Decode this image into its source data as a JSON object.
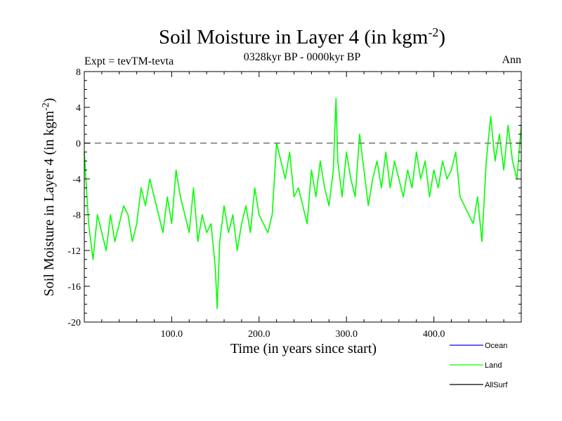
{
  "chart_data": {
    "type": "line",
    "title": "Soil Moisture in Layer 4 (in kgm",
    "title_sup": "-2",
    "title_close": ")",
    "subtitle_left": "Expt = tevTM-tevta",
    "subtitle_center": "0328kyr BP - 0000kyr BP",
    "subtitle_right": "Ann",
    "xlabel": "Time (in years since start)",
    "ylabel": "Soil Moisture in Layer 4 (in kgm",
    "ylabel_sup": "-2",
    "ylabel_close": ")",
    "xlim": [
      0,
      500
    ],
    "ylim": [
      -20,
      8
    ],
    "x_ticks": [
      100,
      200,
      300,
      400
    ],
    "x_tick_labels": [
      "100.0",
      "200.0",
      "300.0",
      "400.0"
    ],
    "y_ticks": [
      8,
      4,
      0,
      -4,
      -8,
      -12,
      -16,
      -20
    ],
    "y_tick_labels": [
      "8",
      "4",
      "0",
      "-4",
      "-8",
      "-12",
      "-16",
      "-20"
    ],
    "reference_line": 0,
    "legend_placement": "bottom-right",
    "legend": [
      {
        "name": "Ocean",
        "color": "#0000ff"
      },
      {
        "name": "Land",
        "color": "#00ff00"
      },
      {
        "name": "AllSurf",
        "color": "#000000"
      }
    ],
    "series": [
      {
        "name": "Land",
        "color": "#00ff00",
        "x": [
          0,
          5,
          10,
          15,
          20,
          25,
          30,
          35,
          40,
          45,
          50,
          55,
          60,
          65,
          70,
          75,
          80,
          85,
          90,
          95,
          100,
          105,
          110,
          115,
          120,
          125,
          130,
          135,
          140,
          145,
          150,
          152,
          155,
          160,
          165,
          170,
          175,
          180,
          185,
          190,
          195,
          200,
          205,
          210,
          215,
          220,
          225,
          230,
          235,
          240,
          245,
          250,
          255,
          260,
          265,
          270,
          275,
          280,
          285,
          288,
          290,
          295,
          300,
          305,
          310,
          315,
          320,
          325,
          330,
          335,
          340,
          345,
          350,
          355,
          360,
          365,
          370,
          375,
          380,
          385,
          390,
          395,
          400,
          405,
          410,
          415,
          420,
          425,
          430,
          435,
          440,
          445,
          450,
          455,
          460,
          465,
          470,
          475,
          480,
          485,
          490,
          495,
          500
        ],
        "values": [
          -1,
          -9,
          -13,
          -8,
          -10,
          -12,
          -8,
          -11,
          -9,
          -7,
          -8,
          -11,
          -9,
          -5,
          -7,
          -4,
          -6,
          -8,
          -10,
          -6,
          -9,
          -3,
          -6,
          -8,
          -10,
          -5,
          -11,
          -8,
          -10,
          -9,
          -14,
          -18.5,
          -11,
          -7,
          -10,
          -8,
          -12,
          -9,
          -7,
          -10,
          -5,
          -8,
          -9,
          -10,
          -8,
          0,
          -2,
          -4,
          -1,
          -6,
          -5,
          -7,
          -9,
          -3,
          -6,
          -2,
          -5,
          -7,
          -3,
          5,
          -2,
          -6,
          -1,
          -4,
          -6,
          1,
          -3,
          -7,
          -4,
          -2,
          -5,
          -1,
          -5,
          -2,
          -4,
          -6,
          -3,
          -5,
          -1,
          -4,
          -2,
          -6,
          -3,
          -5,
          -2,
          -4,
          -3,
          -1,
          -6,
          -7,
          -8,
          -9,
          -6,
          -11,
          -2,
          3,
          -2,
          1,
          -3,
          2,
          -2,
          -4,
          2
        ]
      }
    ]
  }
}
